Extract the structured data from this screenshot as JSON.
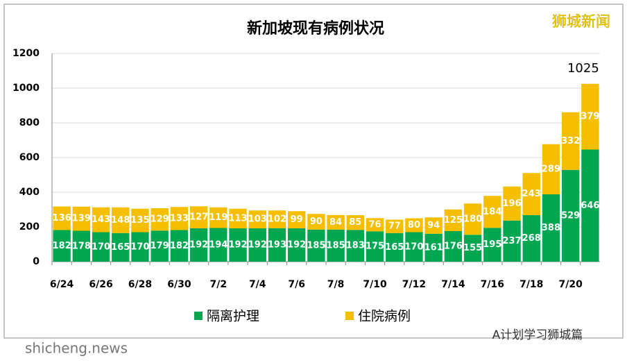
{
  "chart_data": {
    "type": "stacked-bar",
    "title": "新加坡现有病例状况",
    "categories": [
      "6/24",
      null,
      "6/26",
      null,
      "6/28",
      null,
      "6/30",
      null,
      "7/2",
      null,
      "7/4",
      null,
      "7/6",
      null,
      "7/8",
      null,
      "7/10",
      null,
      "7/12",
      null,
      "7/14",
      null,
      "7/16",
      null,
      "7/18",
      null,
      "7/20",
      null
    ],
    "series": [
      {
        "name": "隔离护理",
        "color": "#00a650",
        "values": [
          182,
          178,
          170,
          165,
          170,
          179,
          182,
          192,
          194,
          192,
          192,
          193,
          192,
          185,
          185,
          183,
          175,
          165,
          170,
          161,
          176,
          155,
          195,
          237,
          268,
          388,
          529,
          646
        ]
      },
      {
        "name": "住院病例",
        "color": "#f5bf00",
        "values": [
          136,
          139,
          143,
          148,
          135,
          129,
          133,
          127,
          119,
          113,
          103,
          102,
          99,
          90,
          84,
          85,
          76,
          77,
          80,
          94,
          125,
          180,
          184,
          196,
          243,
          289,
          332,
          379
        ]
      }
    ],
    "ylim": [
      0,
      1200
    ],
    "yticks": [
      0,
      200,
      400,
      600,
      800,
      1000,
      1200
    ],
    "grid": true,
    "annotation": "1025",
    "watermark_top": "狮城新闻",
    "watermark_bottom": "shicheng.news",
    "account": "A计划学习狮城篇"
  }
}
